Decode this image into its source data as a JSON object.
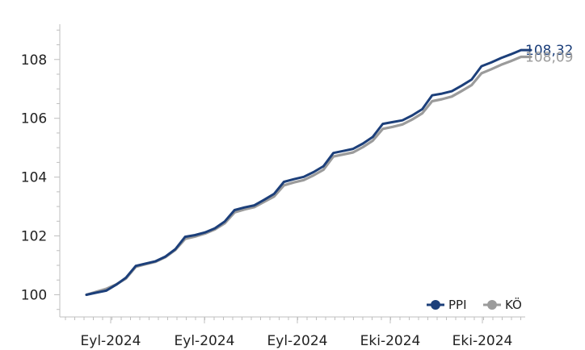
{
  "chart_data": {
    "type": "line",
    "title": "",
    "xlabel": "",
    "ylabel": "",
    "ylim": [
      99.3,
      109.2
    ],
    "grid": false,
    "legend": "bottom-right",
    "x_tick_labels": [
      "Eyl-2024",
      "Eyl-2024",
      "Eyl-2024",
      "Eki-2024",
      "Eki-2024"
    ],
    "y_ticks": [
      100,
      102,
      104,
      106,
      108
    ],
    "y_tick_labels": [
      "100",
      "102",
      "104",
      "106",
      "108"
    ],
    "series": [
      {
        "name": "PPI",
        "color": "#1c3f7a",
        "end_label": "108,32",
        "values": [
          100.0,
          100.07,
          100.14,
          100.34,
          100.58,
          100.98,
          101.06,
          101.14,
          101.3,
          101.55,
          101.97,
          102.03,
          102.12,
          102.26,
          102.49,
          102.88,
          102.97,
          103.04,
          103.23,
          103.43,
          103.84,
          103.93,
          104.01,
          104.17,
          104.37,
          104.82,
          104.89,
          104.96,
          105.14,
          105.37,
          105.81,
          105.87,
          105.93,
          106.1,
          106.31,
          106.78,
          106.84,
          106.92,
          107.11,
          107.32,
          107.77,
          107.9,
          108.05,
          108.18,
          108.32,
          108.32
        ]
      },
      {
        "name": "KÖ",
        "color": "#9b9b9b",
        "end_label": "108,09",
        "values": [
          100.0,
          100.1,
          100.2,
          100.35,
          100.55,
          100.95,
          101.04,
          101.12,
          101.28,
          101.52,
          101.9,
          101.98,
          102.08,
          102.22,
          102.43,
          102.8,
          102.9,
          102.98,
          103.16,
          103.34,
          103.72,
          103.82,
          103.9,
          104.06,
          104.25,
          104.7,
          104.77,
          104.84,
          105.02,
          105.24,
          105.64,
          105.71,
          105.79,
          105.96,
          106.17,
          106.58,
          106.65,
          106.74,
          106.93,
          107.13,
          107.53,
          107.67,
          107.82,
          107.95,
          108.09,
          108.09
        ]
      }
    ]
  }
}
